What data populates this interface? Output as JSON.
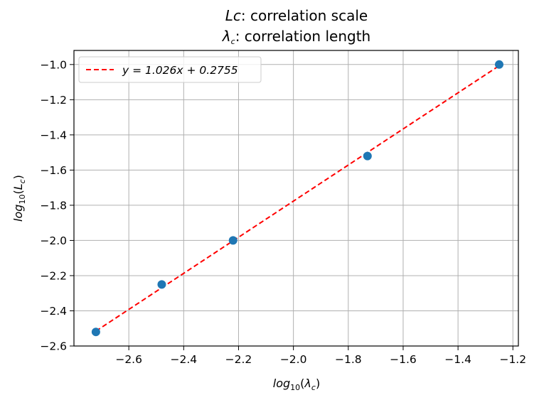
{
  "chart_data": {
    "type": "scatter",
    "title_line1_var": "Lc",
    "title_line1_rest": ": correlation scale",
    "title_line2_var": "λ",
    "title_line2_sub": "c",
    "title_line2_rest": ": correlation length",
    "xlabel_base": "log",
    "xlabel_base_sub": "10",
    "xlabel_paren_open": "(",
    "xlabel_var": "λ",
    "xlabel_var_sub": "c",
    "xlabel_paren_close": ")",
    "ylabel_base": "log",
    "ylabel_base_sub": "10",
    "ylabel_paren_open": "(",
    "ylabel_var": "L",
    "ylabel_var_sub": "c",
    "ylabel_paren_close": ")",
    "xlim": [
      -2.8,
      -1.18
    ],
    "ylim": [
      -2.6,
      -0.92
    ],
    "xticks": [
      -2.6,
      -2.4,
      -2.2,
      -2.0,
      -1.8,
      -1.6,
      -1.4,
      -1.2
    ],
    "xtick_labels": [
      "−2.6",
      "−2.4",
      "−2.2",
      "−2.0",
      "−1.8",
      "−1.6",
      "−1.4",
      "−1.2"
    ],
    "yticks": [
      -2.6,
      -2.4,
      -2.2,
      -2.0,
      -1.8,
      -1.6,
      -1.4,
      -1.2,
      -1.0
    ],
    "ytick_labels": [
      "−2.6",
      "−2.4",
      "−2.2",
      "−2.0",
      "−1.8",
      "−1.6",
      "−1.4",
      "−1.2",
      "−1.0"
    ],
    "grid": true,
    "legend_position": "upper-left",
    "points": {
      "x": [
        -2.72,
        -2.48,
        -2.22,
        -1.73,
        -1.25
      ],
      "y": [
        -2.52,
        -2.25,
        -2.0,
        -1.52,
        -1.0
      ],
      "color": "#1f77b4"
    },
    "fit_line": {
      "label": "y = 1.026x + 0.2755",
      "slope": 1.026,
      "intercept": 0.2755,
      "x_start": -2.72,
      "x_end": -1.25,
      "color": "#ff0000",
      "style": "dashed"
    }
  }
}
